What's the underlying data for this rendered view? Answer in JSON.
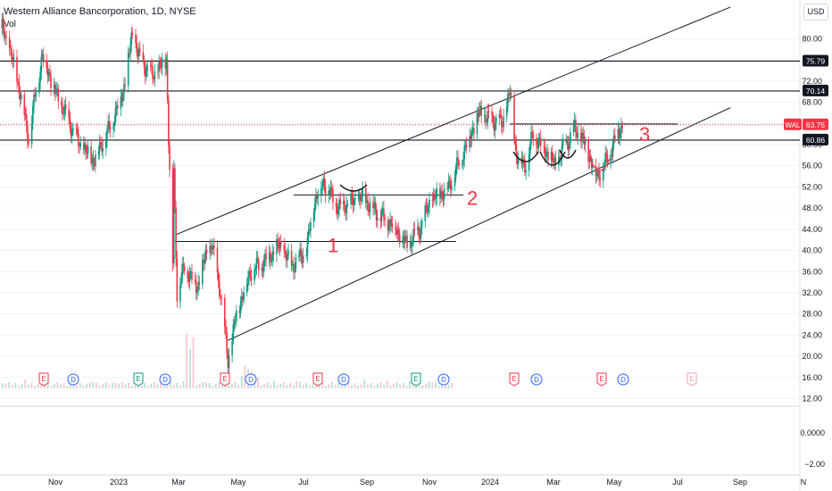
{
  "header": {
    "title": "Western Alliance Bancorporation, 1D, NYSE",
    "vol_label": "Vol",
    "currency": "USD"
  },
  "colors": {
    "up": "#089981",
    "down": "#f23645",
    "line": "#131722",
    "annot": "#f23645",
    "grid": "#f0f3fa",
    "axis_text": "#131722"
  },
  "price_axis": {
    "ticks": [
      "80.00",
      "76.00",
      "72.00",
      "68.00",
      "64.00",
      "60.00",
      "56.00",
      "52.00",
      "48.00",
      "44.00",
      "40.00",
      "36.00",
      "32.00",
      "28.00",
      "24.00",
      "20.00",
      "16.00",
      "12.00"
    ],
    "tick_values": [
      80,
      76,
      72,
      68,
      64,
      60,
      56,
      52,
      48,
      44,
      40,
      36,
      32,
      28,
      24,
      20,
      16,
      12
    ],
    "ylim": [
      10,
      84
    ],
    "tags": [
      {
        "label": "75.79",
        "value": 75.79,
        "style": "black"
      },
      {
        "label": "70.14",
        "value": 70.14,
        "style": "black"
      },
      {
        "label": "WAL",
        "value": 63.75,
        "style": "ticker"
      },
      {
        "label": "63.75",
        "value": 63.75,
        "style": "red"
      },
      {
        "label": "60.86",
        "value": 60.86,
        "style": "black"
      }
    ]
  },
  "indicator_axis": {
    "ticks": [
      "0.0000",
      "−2.00"
    ]
  },
  "time_axis": {
    "labels": [
      "Nov",
      "2023",
      "Mar",
      "May",
      "Jul",
      "Sep",
      "Nov",
      "2024",
      "Mar",
      "May",
      "Jul",
      "Sep",
      "N"
    ]
  },
  "annotations": [
    {
      "label": "1",
      "value": 41.0
    },
    {
      "label": "2",
      "value": 50.0
    },
    {
      "label": "3",
      "value": 62.0
    }
  ],
  "events": {
    "earnings_label": "E",
    "dividend_label": "D",
    "items": [
      "E",
      "D",
      "E",
      "D",
      "E",
      "D",
      "E",
      "D",
      "E",
      "D",
      "E",
      "D",
      "E",
      "D",
      "E"
    ]
  },
  "chart_data": {
    "type": "candlestick",
    "title": "Western Alliance Bancorporation, 1D, NYSE",
    "x_range": [
      "2022-10",
      "2024-11"
    ],
    "y_range": [
      10,
      84
    ],
    "last_price": 63.75,
    "horizontal_levels": [
      75.79,
      70.14,
      60.86
    ],
    "channel": {
      "upper": [
        {
          "x": "2023-03-16",
          "y": 43.0
        },
        {
          "x": "2024-08-20",
          "y": 86.0
        }
      ],
      "lower": [
        {
          "x": "2023-05-04",
          "y": 23.0
        },
        {
          "x": "2024-08-20",
          "y": 67.0
        }
      ]
    },
    "support_resistance": [
      {
        "from": "2023-03-15",
        "to": "2023-12-05",
        "y": 41.7
      },
      {
        "from": "2023-07-05",
        "to": "2023-12-12",
        "y": 50.5
      },
      {
        "from": "2024-01-25",
        "to": "2024-07-01",
        "y": 63.9
      }
    ],
    "price_path": [
      {
        "x": "2022-10-03",
        "y": 82
      },
      {
        "x": "2022-10-10",
        "y": 78
      },
      {
        "x": "2022-10-20",
        "y": 70
      },
      {
        "x": "2022-10-28",
        "y": 61
      },
      {
        "x": "2022-11-03",
        "y": 69
      },
      {
        "x": "2022-11-10",
        "y": 77
      },
      {
        "x": "2022-11-22",
        "y": 70
      },
      {
        "x": "2022-12-01",
        "y": 66
      },
      {
        "x": "2022-12-15",
        "y": 60
      },
      {
        "x": "2022-12-28",
        "y": 57
      },
      {
        "x": "2023-01-12",
        "y": 63
      },
      {
        "x": "2023-01-25",
        "y": 70
      },
      {
        "x": "2023-02-03",
        "y": 81
      },
      {
        "x": "2023-02-10",
        "y": 76
      },
      {
        "x": "2023-02-22",
        "y": 73
      },
      {
        "x": "2023-03-07",
        "y": 76
      },
      {
        "x": "2023-03-09",
        "y": 61
      },
      {
        "x": "2023-03-13",
        "y": 38
      },
      {
        "x": "2023-03-14",
        "y": 55
      },
      {
        "x": "2023-03-17",
        "y": 32
      },
      {
        "x": "2023-03-24",
        "y": 37
      },
      {
        "x": "2023-04-05",
        "y": 33
      },
      {
        "x": "2023-04-13",
        "y": 39
      },
      {
        "x": "2023-04-19",
        "y": 41
      },
      {
        "x": "2023-04-27",
        "y": 32
      },
      {
        "x": "2023-05-04",
        "y": 19
      },
      {
        "x": "2023-05-12",
        "y": 28
      },
      {
        "x": "2023-05-25",
        "y": 36
      },
      {
        "x": "2023-06-08",
        "y": 38
      },
      {
        "x": "2023-06-22",
        "y": 41
      },
      {
        "x": "2023-07-03",
        "y": 37
      },
      {
        "x": "2023-07-17",
        "y": 40
      },
      {
        "x": "2023-07-24",
        "y": 49
      },
      {
        "x": "2023-08-02",
        "y": 53
      },
      {
        "x": "2023-08-16",
        "y": 48
      },
      {
        "x": "2023-08-29",
        "y": 49
      },
      {
        "x": "2023-09-08",
        "y": 50
      },
      {
        "x": "2023-09-22",
        "y": 47
      },
      {
        "x": "2023-10-06",
        "y": 45
      },
      {
        "x": "2023-10-20",
        "y": 41
      },
      {
        "x": "2023-11-01",
        "y": 44
      },
      {
        "x": "2023-11-10",
        "y": 49
      },
      {
        "x": "2023-11-28",
        "y": 52
      },
      {
        "x": "2023-12-13",
        "y": 59
      },
      {
        "x": "2023-12-27",
        "y": 66
      },
      {
        "x": "2024-01-03",
        "y": 65
      },
      {
        "x": "2024-01-18",
        "y": 64
      },
      {
        "x": "2024-01-25",
        "y": 70
      },
      {
        "x": "2024-01-31",
        "y": 58
      },
      {
        "x": "2024-02-08",
        "y": 56
      },
      {
        "x": "2024-02-16",
        "y": 62
      },
      {
        "x": "2024-02-27",
        "y": 59
      },
      {
        "x": "2024-03-08",
        "y": 56
      },
      {
        "x": "2024-03-15",
        "y": 59
      },
      {
        "x": "2024-03-26",
        "y": 63
      },
      {
        "x": "2024-04-05",
        "y": 60
      },
      {
        "x": "2024-04-16",
        "y": 54
      },
      {
        "x": "2024-04-25",
        "y": 57
      },
      {
        "x": "2024-05-03",
        "y": 61
      },
      {
        "x": "2024-05-10",
        "y": 63.75
      }
    ]
  }
}
